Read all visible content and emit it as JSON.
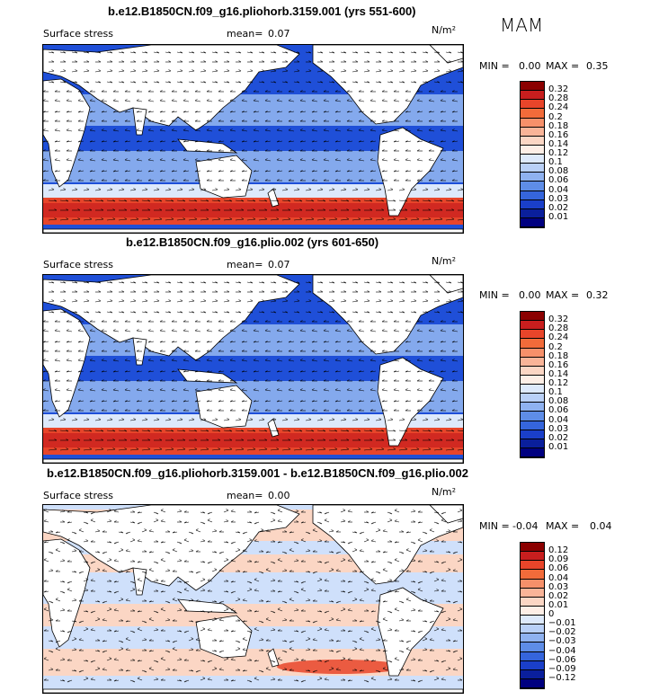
{
  "season": "MAM",
  "units": "N/m²",
  "panels": [
    {
      "title": "b.e12.B1850CN.f09_g16.pliohorb.3159.001 (yrs 551-600)",
      "variable": "Surface stress",
      "mean_label": "mean=",
      "mean_value": "0.07",
      "min_label": "MIN =",
      "min_value": "0.00",
      "max_label": "MAX =",
      "max_value": "0.35",
      "colorbar_labels": [
        "0.32",
        "0.28",
        "0.24",
        "0.2",
        "0.18",
        "0.16",
        "0.14",
        "0.12",
        "0.1",
        "0.08",
        "0.06",
        "0.04",
        "0.03",
        "0.02",
        "0.01"
      ],
      "colorbar_colors": [
        "#8b0000",
        "#c81e1e",
        "#e8452a",
        "#f26b3a",
        "#f6906a",
        "#f9b498",
        "#fbd6c4",
        "#fdeee6",
        "#dde9fb",
        "#b9d0f7",
        "#8fb2f0",
        "#5e8de7",
        "#3565dc",
        "#1a3fc9",
        "#0a1f9c",
        "#000080"
      ]
    },
    {
      "title": "b.e12.B1850CN.f09_g16.plio.002 (yrs 601-650)",
      "variable": "Surface stress",
      "mean_label": "mean=",
      "mean_value": "0.07",
      "min_label": "MIN =",
      "min_value": "0.00",
      "max_label": "MAX =",
      "max_value": "0.32",
      "colorbar_labels": [
        "0.32",
        "0.28",
        "0.24",
        "0.2",
        "0.18",
        "0.16",
        "0.14",
        "0.12",
        "0.1",
        "0.08",
        "0.06",
        "0.04",
        "0.03",
        "0.02",
        "0.01"
      ],
      "colorbar_colors": [
        "#8b0000",
        "#c81e1e",
        "#e8452a",
        "#f26b3a",
        "#f6906a",
        "#f9b498",
        "#fbd6c4",
        "#fdeee6",
        "#dde9fb",
        "#b9d0f7",
        "#8fb2f0",
        "#5e8de7",
        "#3565dc",
        "#1a3fc9",
        "#0a1f9c",
        "#000080"
      ]
    },
    {
      "title": "b.e12.B1850CN.f09_g16.pliohorb.3159.001 - b.e12.B1850CN.f09_g16.plio.002",
      "variable": "Surface stress",
      "mean_label": "mean=",
      "mean_value": "0.00",
      "min_label": "MIN =",
      "min_value": "-0.04",
      "max_label": "MAX =",
      "max_value": "0.04",
      "colorbar_labels": [
        "0.12",
        "0.09",
        "0.06",
        "0.04",
        "0.03",
        "0.02",
        "0.01",
        "0",
        "−0.01",
        "−0.02",
        "−0.03",
        "−0.04",
        "−0.06",
        "−0.09",
        "−0.12"
      ],
      "colorbar_colors": [
        "#8b0000",
        "#c81e1e",
        "#e8452a",
        "#f26b3a",
        "#f6906a",
        "#f9b498",
        "#fbd6c4",
        "#fdeee6",
        "#dde9fb",
        "#b9d0f7",
        "#8fb2f0",
        "#5e8de7",
        "#3565dc",
        "#1a3fc9",
        "#0a1f9c",
        "#000080"
      ]
    }
  ],
  "colors": {
    "ocean_low": "#1f4fd8",
    "ocean_mid": "#8fb2f0",
    "ocean_light": "#dde9fb",
    "southern_high": "#e8452a",
    "diff_pos": "#fbd6c4",
    "diff_neg": "#cfe0fb",
    "land": "#ffffff"
  }
}
